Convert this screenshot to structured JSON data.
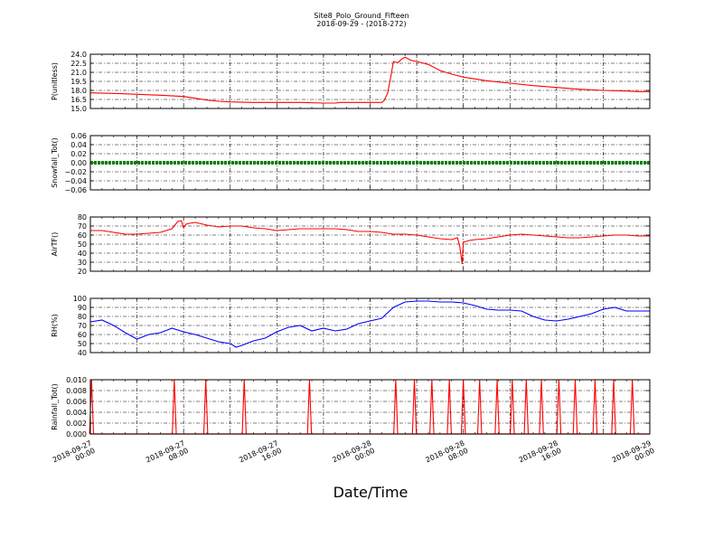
{
  "title": "Site8_Polo_Ground_Fifteen",
  "subtitle": "2018-09-29 - (2018-272)",
  "xlabel": "Date/Time",
  "x_tick_labels": [
    [
      "2018-09-27",
      "00:00"
    ],
    [
      "2018-09-27",
      "08:00"
    ],
    [
      "2018-09-27",
      "16:00"
    ],
    [
      "2018-09-28",
      "00:00"
    ],
    [
      "2018-09-28",
      "08:00"
    ],
    [
      "2018-09-28",
      "16:00"
    ],
    [
      "2018-09-29",
      "00:00"
    ]
  ],
  "colors": {
    "red": "#ff0000",
    "green": "#008000",
    "blue": "#0000ff",
    "axis": "#000000",
    "grid": "#000000"
  },
  "chart_data": [
    {
      "type": "line",
      "ylabel": "P(unitless)",
      "ylim": [
        15.0,
        24.0
      ],
      "yticks": [
        "24.0",
        "22.5",
        "21.0",
        "19.5",
        "18.0",
        "16.5",
        "15.0"
      ],
      "xlim_hours": [
        0,
        48
      ],
      "grid": true,
      "series": [
        {
          "color": "red",
          "x": [
            0,
            2,
            4,
            6,
            8,
            9,
            10,
            11,
            12,
            14,
            16,
            18,
            20,
            21,
            21.5,
            22,
            24,
            25,
            25.2,
            25.5,
            25.8,
            26,
            26.4,
            26.6,
            26.8,
            27,
            27.5,
            28,
            29,
            30,
            31,
            32,
            34,
            36,
            38,
            40,
            42,
            44,
            46,
            47,
            48
          ],
          "y": [
            17.6,
            17.5,
            17.35,
            17.2,
            17.0,
            16.7,
            16.4,
            16.2,
            16.1,
            16.0,
            16.0,
            16.0,
            15.9,
            15.9,
            16.0,
            16.0,
            16.0,
            16.0,
            16.3,
            17.5,
            20.5,
            22.8,
            22.6,
            23.0,
            23.3,
            23.5,
            23.0,
            22.8,
            22.3,
            21.3,
            20.7,
            20.2,
            19.6,
            19.2,
            18.8,
            18.5,
            18.2,
            18.0,
            17.9,
            17.8,
            17.8
          ]
        }
      ]
    },
    {
      "type": "line",
      "ylabel": "Snowfall_Tot()",
      "ylim": [
        -0.06,
        0.06
      ],
      "yticks": [
        "0.06",
        "0.04",
        "0.02",
        "0.00",
        "−0.02",
        "−0.04",
        "−0.06"
      ],
      "xlim_hours": [
        0,
        48
      ],
      "grid": true,
      "series": [
        {
          "color": "green",
          "x": [
            0,
            48
          ],
          "y": [
            0.0,
            0.0
          ]
        }
      ]
    },
    {
      "type": "line",
      "ylabel": "AirTF()",
      "ylim": [
        20,
        80
      ],
      "yticks": [
        "80",
        "70",
        "60",
        "50",
        "40",
        "30",
        "20"
      ],
      "xlim_hours": [
        0,
        48
      ],
      "grid": true,
      "series": [
        {
          "color": "red",
          "x": [
            0,
            1,
            2,
            3,
            4,
            5,
            6,
            7,
            7.5,
            7.8,
            8,
            8.2,
            8.5,
            9,
            10,
            11,
            12,
            13,
            14,
            15,
            16,
            17,
            18,
            19,
            20,
            21,
            22,
            23,
            24,
            25,
            26,
            27,
            28,
            29,
            30,
            31,
            31.5,
            31.7,
            31.9,
            32,
            32.5,
            33,
            34,
            35,
            36,
            37,
            38,
            39,
            40,
            41,
            42,
            43,
            44,
            45,
            46,
            47,
            48
          ],
          "y": [
            65,
            65,
            63,
            61,
            61,
            62,
            63,
            67,
            75,
            76,
            68,
            72,
            73,
            74,
            71,
            69,
            70,
            70,
            68,
            67,
            65,
            66,
            67,
            67,
            67,
            67,
            66,
            64,
            64,
            63,
            61,
            61,
            60,
            58,
            56,
            55,
            57,
            47,
            28,
            52,
            54,
            55,
            56,
            58,
            60,
            61,
            60,
            59,
            58,
            57,
            57,
            58,
            59,
            60,
            60,
            59,
            59
          ]
        }
      ]
    },
    {
      "type": "line",
      "ylabel": "RH(%)",
      "ylim": [
        40,
        100
      ],
      "yticks": [
        "100",
        "90",
        "80",
        "70",
        "60",
        "50",
        "40"
      ],
      "xlim_hours": [
        0,
        48
      ],
      "grid": true,
      "series": [
        {
          "color": "blue",
          "x": [
            0,
            1,
            2,
            3,
            4,
            5,
            6,
            7,
            8,
            9,
            10,
            11,
            12,
            12.5,
            13,
            14,
            15,
            16,
            17,
            18,
            19,
            20,
            21,
            22,
            23,
            24,
            25,
            26,
            27,
            28,
            29,
            30,
            31,
            32,
            33,
            34,
            35,
            36,
            37,
            38,
            39,
            40,
            41,
            42,
            43,
            44,
            45,
            46,
            47,
            48
          ],
          "y": [
            74,
            76,
            70,
            62,
            55,
            60,
            62,
            67,
            63,
            60,
            56,
            52,
            50,
            46,
            48,
            53,
            56,
            63,
            68,
            70,
            64,
            67,
            64,
            66,
            72,
            75,
            78,
            90,
            96,
            97,
            97,
            96,
            96,
            95,
            92,
            88,
            87,
            87,
            86,
            80,
            76,
            75,
            77,
            80,
            83,
            88,
            90,
            86,
            86,
            86
          ]
        }
      ]
    },
    {
      "type": "line",
      "ylabel": "Rainfall_Tot()",
      "ylim": [
        0.0,
        0.01
      ],
      "yticks": [
        "0.010",
        "0.008",
        "0.006",
        "0.004",
        "0.002",
        "0.000"
      ],
      "xlim_hours": [
        0,
        48
      ],
      "grid": true,
      "series": [
        {
          "color": "red",
          "spikes_hours": [
            0.1,
            7.2,
            9.9,
            13.2,
            18.8,
            26.2,
            27.8,
            29.3,
            30.8,
            32.0,
            33.4,
            34.9,
            36.2,
            37.4,
            38.7,
            40.2,
            41.6,
            43.3,
            44.9,
            46.5
          ],
          "spike_value": 0.01
        }
      ]
    }
  ]
}
